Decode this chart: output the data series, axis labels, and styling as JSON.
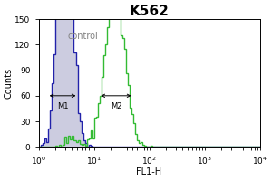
{
  "title": "K562",
  "xlabel": "FL1-H",
  "ylabel": "Counts",
  "annotation": "control",
  "ylim": [
    0,
    150
  ],
  "yticks": [
    0,
    30,
    60,
    90,
    120,
    150
  ],
  "xlog_min": 0,
  "xlog_max": 4,
  "fig_bg_color": "#ffffff",
  "plot_bg_color": "#ffffff",
  "blue_fill_color": "#aaaacc",
  "blue_edge_color": "#2222aa",
  "green_color": "#33bb33",
  "m1_label": "M1",
  "m2_label": "M2",
  "title_fontsize": 11,
  "axis_fontsize": 6.5,
  "label_fontsize": 7,
  "annotation_fontsize": 7,
  "blue_peak_mu": 0.48,
  "blue_peak_sigma": 0.13,
  "blue_n": 3000,
  "green_peak_mu": 1.38,
  "green_peak_sigma": 0.18,
  "green_n": 2500,
  "m1_x1_exp": 0.15,
  "m1_x2_exp": 0.72,
  "m1_y": 60,
  "m2_x1_exp": 1.08,
  "m2_x2_exp": 1.72,
  "m2_y": 60
}
